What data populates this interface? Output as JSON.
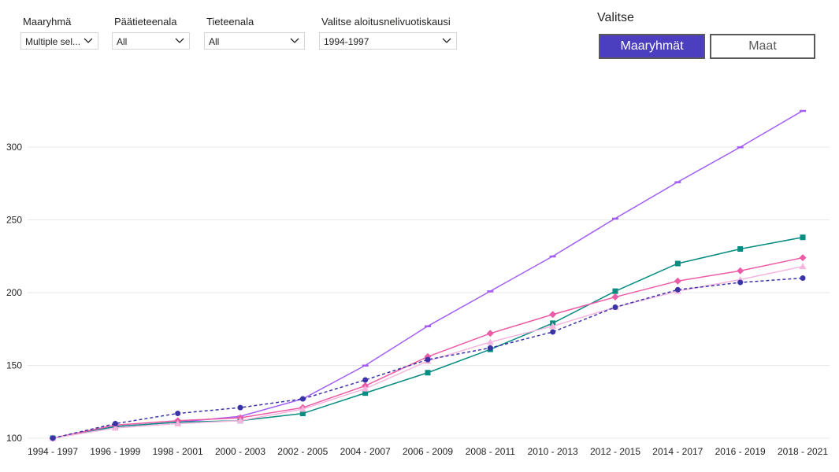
{
  "filters": [
    {
      "label": "Maaryhmä",
      "value": "Multiple sel..."
    },
    {
      "label": "Päätieteenala",
      "value": "All"
    },
    {
      "label": "Tieteenala",
      "value": "All"
    },
    {
      "label": "Valitse aloitusnelivuotiskausi",
      "value": "1994-1997"
    }
  ],
  "toggle": {
    "title": "Valitse",
    "active_label": "Maaryhmät",
    "inactive_label": "Maat"
  },
  "chart_data": {
    "type": "line",
    "categories": [
      "1994 - 1997",
      "1996 - 1999",
      "1998 - 2001",
      "2000 - 2003",
      "2002 - 2005",
      "2004 - 2007",
      "2006 - 2009",
      "2008 - 2011",
      "2010 - 2013",
      "2012 - 2015",
      "2014 - 2017",
      "2016 - 2019",
      "2018 - 2021"
    ],
    "ylim": [
      100,
      325
    ],
    "yticks": [
      100,
      150,
      200,
      250,
      300
    ],
    "grid": true,
    "legend": "none",
    "series": [
      {
        "color": "#a35ef5",
        "marker": "dash",
        "dashed": false,
        "values": [
          100,
          108,
          111,
          115,
          127,
          150,
          177,
          201,
          225,
          251,
          276,
          300,
          325
        ]
      },
      {
        "color": "#068c80",
        "marker": "square",
        "dashed": false,
        "values": [
          100,
          108,
          111,
          112,
          117,
          131,
          145,
          161,
          179,
          201,
          220,
          230,
          238
        ]
      },
      {
        "color": "#ec5ba7",
        "marker": "diamond",
        "dashed": false,
        "values": [
          100,
          109,
          112,
          114,
          121,
          136,
          156,
          172,
          185,
          197,
          208,
          215,
          224
        ]
      },
      {
        "color": "#f4b5de",
        "marker": "triangle",
        "dashed": false,
        "values": [
          100,
          107,
          110,
          112,
          120,
          134,
          153,
          166,
          177,
          190,
          201,
          209,
          218
        ]
      },
      {
        "color": "#3a33a8",
        "marker": "circle",
        "dashed": true,
        "values": [
          100,
          110,
          117,
          121,
          127,
          140,
          154,
          162,
          173,
          190,
          202,
          207,
          210
        ]
      }
    ]
  }
}
